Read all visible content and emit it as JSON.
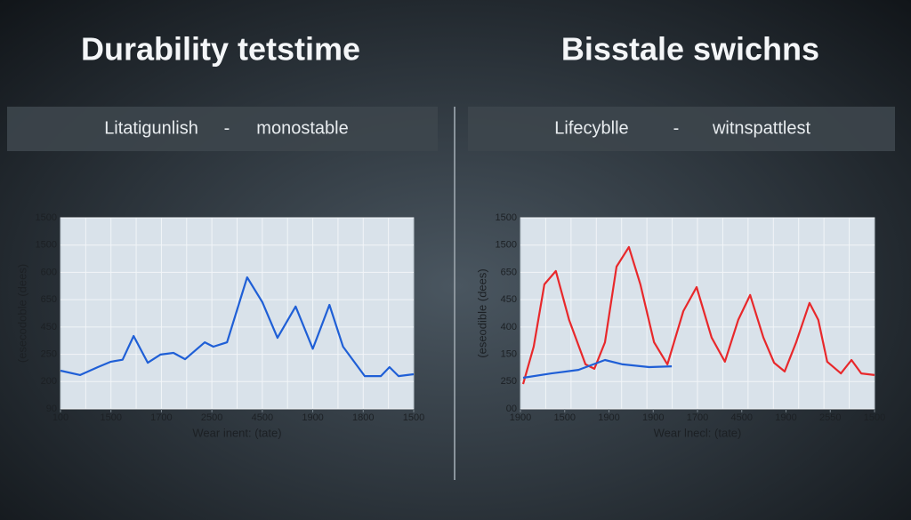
{
  "chart_data": [
    {
      "type": "line",
      "title": "Durability tetstime",
      "subtitle": [
        "Litatigunlish",
        "-",
        "monostable"
      ],
      "xlabel": "Wear inent: (tate)",
      "ylabel": "(esecodoble (dees)",
      "xlim": [
        0,
        7
      ],
      "xticks": [
        {
          "value": 0,
          "label": "100"
        },
        {
          "value": 1,
          "label": "1500"
        },
        {
          "value": 2,
          "label": "1700"
        },
        {
          "value": 3,
          "label": "2500"
        },
        {
          "value": 4,
          "label": "4500"
        },
        {
          "value": 5,
          "label": "1900"
        },
        {
          "value": 6,
          "label": "1800"
        },
        {
          "value": 7,
          "label": "1500"
        }
      ],
      "ylim": [
        0,
        7
      ],
      "yticks": [
        {
          "value": 0,
          "label": "90"
        },
        {
          "value": 1,
          "label": "200"
        },
        {
          "value": 2,
          "label": "250"
        },
        {
          "value": 3,
          "label": "450"
        },
        {
          "value": 4,
          "label": "650"
        },
        {
          "value": 5,
          "label": "600"
        },
        {
          "value": 6,
          "label": "1500"
        },
        {
          "value": 7,
          "label": "1500"
        }
      ],
      "grid": true,
      "series": [
        {
          "color": "#1f5fd6",
          "x": [
            0,
            0.39,
            0.74,
            1.0,
            1.23,
            1.45,
            1.73,
            1.98,
            2.24,
            2.47,
            2.86,
            3.03,
            3.3,
            3.7,
            4.0,
            4.3,
            4.66,
            5.0,
            5.33,
            5.6,
            6.03,
            6.35,
            6.52,
            6.7,
            7
          ],
          "values": [
            1.4,
            1.24,
            1.53,
            1.73,
            1.8,
            2.67,
            1.69,
            1.99,
            2.05,
            1.82,
            2.44,
            2.28,
            2.44,
            4.82,
            3.91,
            2.6,
            3.75,
            2.2,
            3.81,
            2.28,
            1.2,
            1.2,
            1.53,
            1.2,
            1.27
          ]
        }
      ]
    },
    {
      "type": "line",
      "title": "Bisstale  swichns",
      "subtitle": [
        "Lifecyblle",
        "-",
        "witnspattlest"
      ],
      "xlabel": "Wear lnecl: (tate)",
      "ylabel": "(eseodible (dees)",
      "xlim": [
        0,
        8
      ],
      "xticks": [
        {
          "value": 0,
          "label": "1900"
        },
        {
          "value": 1,
          "label": "1500"
        },
        {
          "value": 2,
          "label": "1900"
        },
        {
          "value": 3,
          "label": "1900"
        },
        {
          "value": 4,
          "label": "1700"
        },
        {
          "value": 5,
          "label": "4500"
        },
        {
          "value": 6,
          "label": "1900"
        },
        {
          "value": 7,
          "label": "2550"
        },
        {
          "value": 8,
          "label": "1500"
        }
      ],
      "ylim": [
        0,
        7
      ],
      "yticks": [
        {
          "value": 0,
          "label": "00"
        },
        {
          "value": 1,
          "label": "250"
        },
        {
          "value": 2,
          "label": "150"
        },
        {
          "value": 3,
          "label": "400"
        },
        {
          "value": 4,
          "label": "450"
        },
        {
          "value": 5,
          "label": "650"
        },
        {
          "value": 6,
          "label": "1500"
        },
        {
          "value": 7,
          "label": "1500"
        }
      ],
      "grid": true,
      "series": [
        {
          "color": "#e8282b",
          "x": [
            0.06,
            0.3,
            0.54,
            0.8,
            1.1,
            1.47,
            1.67,
            1.91,
            2.17,
            2.45,
            2.71,
            3.02,
            3.32,
            3.68,
            3.98,
            4.32,
            4.62,
            4.92,
            5.19,
            5.49,
            5.73,
            5.97,
            6.23,
            6.53,
            6.73,
            6.93,
            7.24,
            7.48,
            7.7,
            8
          ],
          "values": [
            0.91,
            2.28,
            4.56,
            5.05,
            3.26,
            1.63,
            1.47,
            2.44,
            5.21,
            5.93,
            4.56,
            2.44,
            1.63,
            3.58,
            4.46,
            2.61,
            1.73,
            3.26,
            4.17,
            2.61,
            1.69,
            1.37,
            2.44,
            3.88,
            3.26,
            1.73,
            1.3,
            1.79,
            1.3,
            1.24
          ]
        },
        {
          "color": "#1f5fd6",
          "x": [
            0.06,
            0.7,
            1.31,
            1.91,
            2.31,
            2.91,
            3.42
          ],
          "values": [
            1.14,
            1.3,
            1.43,
            1.79,
            1.63,
            1.53,
            1.56
          ]
        }
      ]
    }
  ]
}
